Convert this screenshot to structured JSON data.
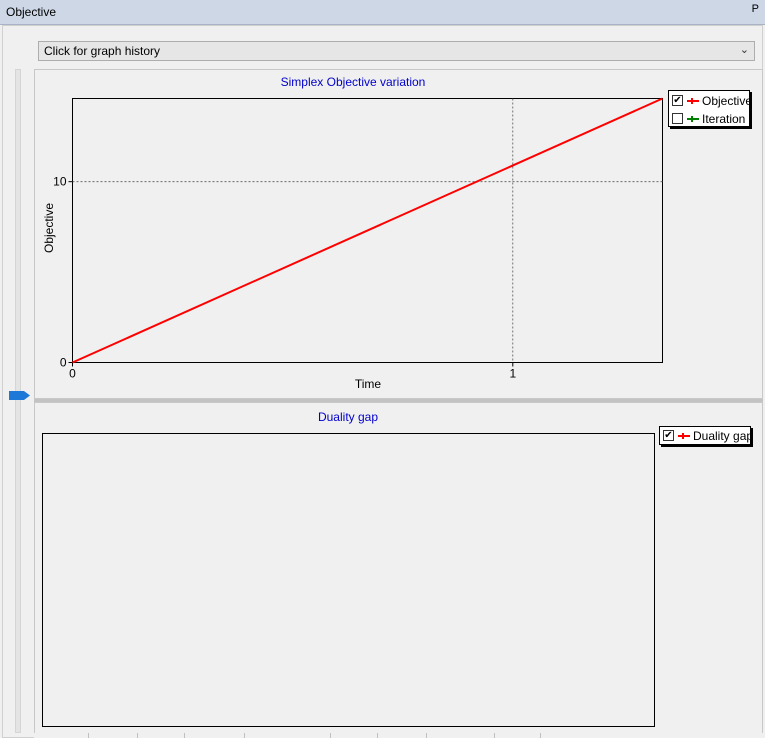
{
  "window": {
    "title": "Objective",
    "pin_glyph": "Ρ",
    "pin_icon": "pin-icon"
  },
  "history_dropdown": {
    "selected": "Click for graph history",
    "arrow": "⌵"
  },
  "objective_chart": {
    "title": "Simplex Objective variation",
    "legend": [
      {
        "label": "Objective",
        "checked": true,
        "color": "#ff0000"
      },
      {
        "label": "Iteration",
        "checked": false,
        "color": "#008000"
      }
    ]
  },
  "duality_chart": {
    "title": "Duality gap",
    "legend": [
      {
        "label": "Duality gap",
        "checked": true,
        "color": "#ff0000"
      }
    ]
  },
  "chart_data": [
    {
      "type": "line",
      "title": "Simplex Objective variation",
      "xlabel": "Time",
      "ylabel": "Objective",
      "xlim": [
        0,
        1.34
      ],
      "ylim": [
        0,
        14.6
      ],
      "x_ticks": [
        "0",
        "1"
      ],
      "y_ticks": [
        "0",
        "10"
      ],
      "grid": true,
      "legend_position": "top-right",
      "series": [
        {
          "name": "Objective",
          "color": "#ff0000",
          "x": [
            0,
            1.34
          ],
          "y": [
            0,
            14.6
          ]
        }
      ]
    },
    {
      "type": "line",
      "title": "Duality gap",
      "grid": false,
      "legend_position": "top-right",
      "series": [
        {
          "name": "Duality gap",
          "color": "#ff0000",
          "x": [],
          "y": []
        }
      ]
    }
  ]
}
